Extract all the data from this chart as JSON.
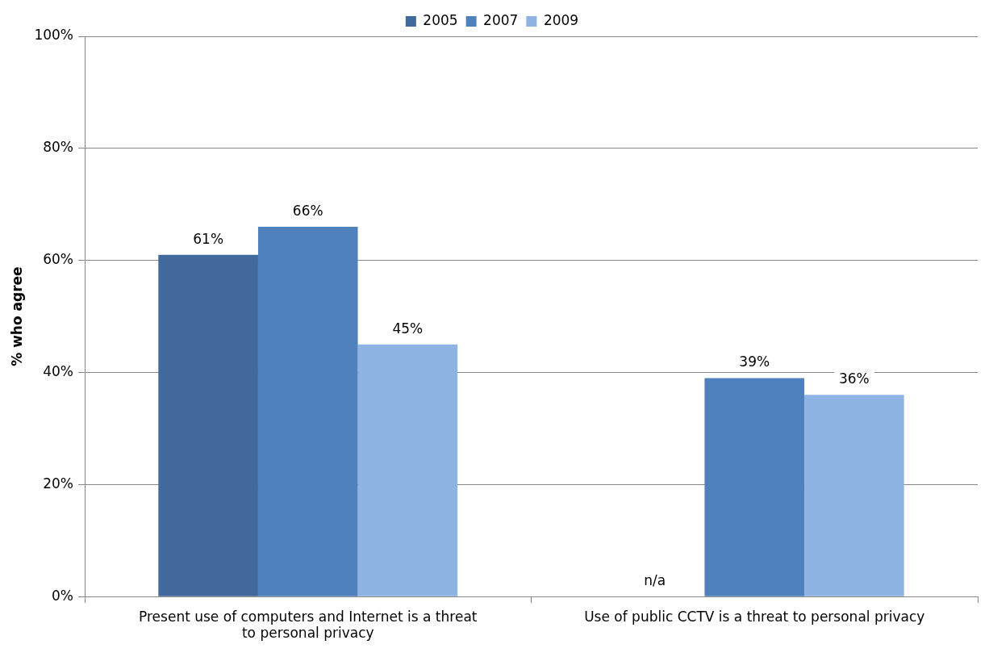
{
  "chart_data": {
    "type": "bar",
    "ylabel": "% who agree",
    "categories": [
      "Present use of computers and Internet is a threat to personal privacy",
      "Use of public CCTV is a threat to personal privacy"
    ],
    "series": [
      {
        "name": "2005",
        "color": "#41699b",
        "values": [
          61,
          null
        ],
        "value_labels": [
          "61%",
          "n/a"
        ]
      },
      {
        "name": "2007",
        "color": "#4f81bd",
        "values": [
          66,
          39
        ],
        "value_labels": [
          "66%",
          "39%"
        ]
      },
      {
        "name": "2009",
        "color": "#8eb4e3",
        "values": [
          45,
          36
        ],
        "value_labels": [
          "45%",
          "36%"
        ]
      }
    ],
    "ylim": [
      0,
      100
    ],
    "yticks": [
      {
        "value": 0,
        "label": "0%"
      },
      {
        "value": 20,
        "label": "20%"
      },
      {
        "value": 40,
        "label": "40%"
      },
      {
        "value": 60,
        "label": "60%"
      },
      {
        "value": 80,
        "label": "80%"
      },
      {
        "value": 100,
        "label": "100%"
      }
    ],
    "grid": "y",
    "legend": "top"
  }
}
